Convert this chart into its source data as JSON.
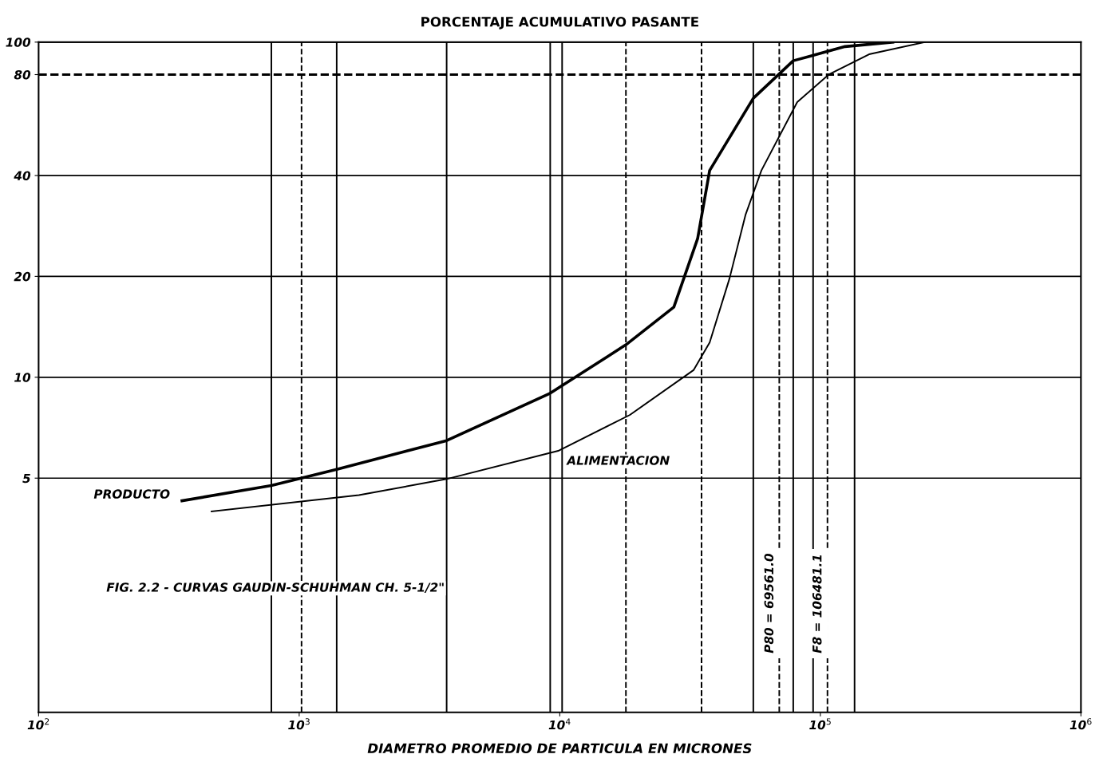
{
  "chart_data": {
    "type": "line",
    "title": "PORCENTAJE ACUMULATIVO PASANTE",
    "xlabel": "DIAMETRO PROMEDIO DE PARTICULA EN MICRONES",
    "log": "xy",
    "xlim": [
      100,
      1000000
    ],
    "ylim": [
      1,
      100
    ],
    "xticks": [
      {
        "value": 100,
        "label": "10$^{2}$"
      },
      {
        "value": 1000,
        "label": "10$^{3}$"
      },
      {
        "value": 10000,
        "label": "10$^{4}$"
      },
      {
        "value": 100000,
        "label": "10$^{5}$"
      },
      {
        "value": 1000000,
        "label": "10$^{6}$"
      }
    ],
    "yticks": [
      5,
      10,
      20,
      40,
      80,
      100
    ],
    "grid": "y",
    "legend": false,
    "marker": "none",
    "series": [
      {
        "name": "PRODUCTO",
        "color": "#000000",
        "x": [
          355,
          782,
          1393,
          3680,
          9190,
          17940,
          27400,
          33800,
          37600,
          55300,
          78700,
          124400,
          189700
        ],
        "values": [
          4.28,
          4.75,
          5.31,
          6.47,
          8.96,
          12.5,
          16.2,
          25.9,
          41.4,
          68,
          88,
          97,
          100
        ]
      },
      {
        "name": "ALIMENTACION",
        "color": "#000000",
        "x": [
          461,
          1695,
          3680,
          9860,
          18580,
          32600,
          37600,
          44800,
          51600,
          59400,
          81500,
          108100,
          153800,
          251800
        ],
        "values": [
          3.98,
          4.45,
          4.97,
          6.03,
          7.72,
          10.5,
          12.7,
          19.7,
          30.5,
          41.4,
          66.2,
          80.2,
          92,
          100
        ]
      }
    ],
    "ref_lines": [
      {
        "axis": "y",
        "value": 80,
        "line_style": "dashed"
      },
      {
        "axis": "x",
        "value": 69561.0,
        "label": "P80 = 69561.0",
        "line_style": "dashed"
      },
      {
        "axis": "x",
        "value": 106481.1,
        "label": "F8 = 106481.1",
        "line_style": "dashed"
      },
      {
        "axis": "x",
        "value": 782,
        "line_style": "solid"
      },
      {
        "axis": "x",
        "value": 1021,
        "line_style": "dashed"
      },
      {
        "axis": "x",
        "value": 1393,
        "line_style": "solid"
      },
      {
        "axis": "x",
        "value": 3680,
        "line_style": "solid"
      },
      {
        "axis": "x",
        "value": 9190,
        "line_style": "solid"
      },
      {
        "axis": "x",
        "value": 10210,
        "line_style": "solid"
      },
      {
        "axis": "x",
        "value": 17940,
        "line_style": "dashed"
      },
      {
        "axis": "x",
        "value": 35000,
        "line_style": "dashed"
      },
      {
        "axis": "x",
        "value": 55300,
        "line_style": "solid"
      },
      {
        "axis": "x",
        "value": 78700,
        "line_style": "solid"
      },
      {
        "axis": "x",
        "value": 93800,
        "line_style": "solid"
      },
      {
        "axis": "x",
        "value": 135300,
        "line_style": "solid"
      }
    ],
    "annotations": [
      "FIG. 2.2 - CURVAS GAUDIN-SCHUHMAN CH. 5-1/2\""
    ]
  }
}
